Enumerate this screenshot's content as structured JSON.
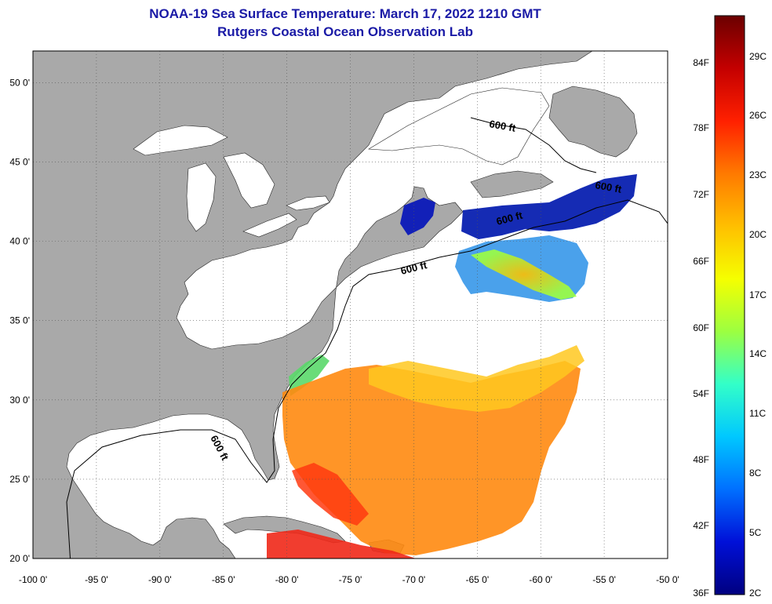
{
  "title": {
    "line1": "NOAA-19 Sea Surface Temperature:  March 17, 2022 1210 GMT",
    "line2": "Rutgers Coastal Ocean Observation Lab"
  },
  "map": {
    "lon_range": [
      -100,
      -50
    ],
    "lat_range": [
      20,
      52
    ],
    "lon_ticks": [
      "-100 0'",
      "-95 0'",
      "-90 0'",
      "-85 0'",
      "-80 0'",
      "-75 0'",
      "-70 0'",
      "-65 0'",
      "-60 0'",
      "-55 0'",
      "-50 0'"
    ],
    "lat_ticks": [
      "20 0'",
      "25 0'",
      "30 0'",
      "35 0'",
      "40 0'",
      "45 0'",
      "50 0'"
    ],
    "contour_label": "600 ft",
    "colors": {
      "land": "#a9a9a9",
      "ocean": "#ffffff",
      "contour": "#000000",
      "grid": "#555555"
    }
  },
  "colorbar": {
    "fahrenheit": [
      "84F",
      "78F",
      "72F",
      "66F",
      "60F",
      "54F",
      "48F",
      "42F",
      "36F"
    ],
    "celsius": [
      "29C",
      "26C",
      "23C",
      "20C",
      "17C",
      "14C",
      "11C",
      "8C",
      "5C",
      "2C"
    ],
    "scale_colors": [
      "#6b0000",
      "#c40000",
      "#ff2000",
      "#ff7a00",
      "#ffbf00",
      "#f5ff00",
      "#9dff40",
      "#33ffc8",
      "#00c8ff",
      "#0070ff",
      "#0010d8",
      "#000080"
    ]
  }
}
